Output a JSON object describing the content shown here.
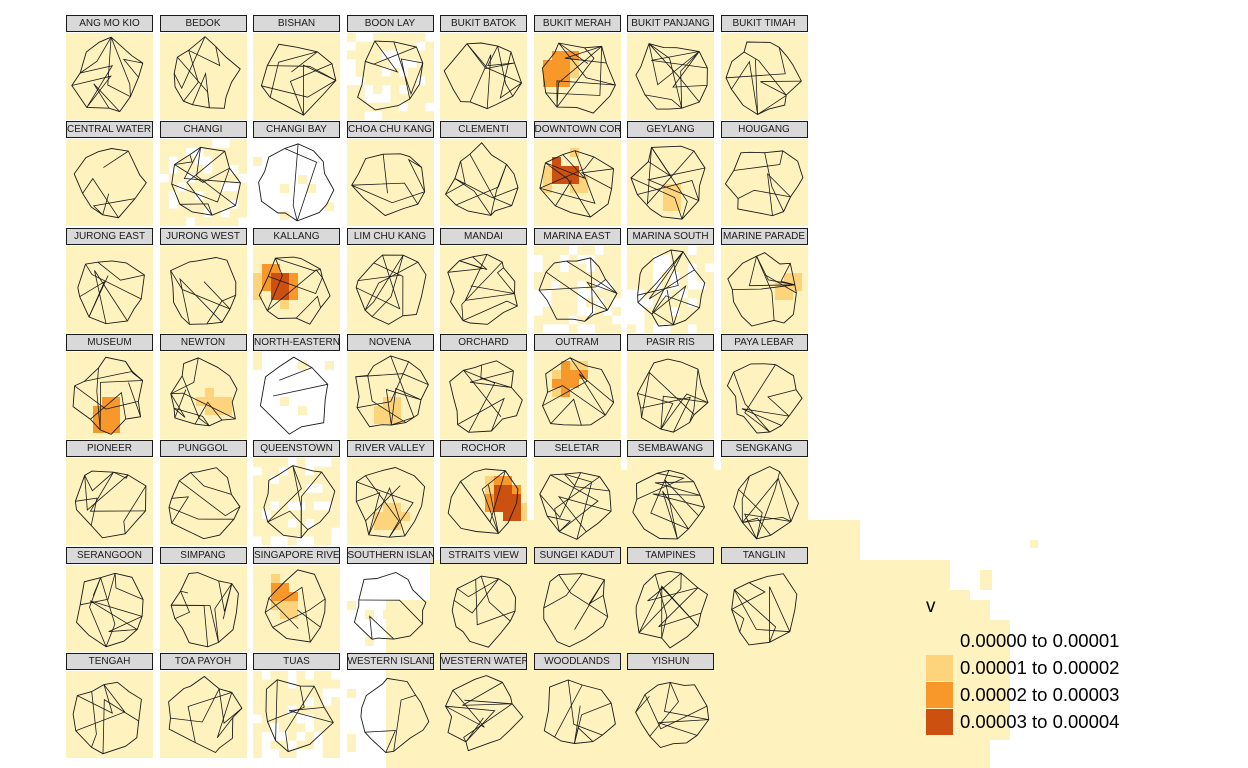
{
  "map": {
    "background_color": "#fef2bf",
    "panels": [
      {
        "label": "ANG MO KIO",
        "fill": "full",
        "hot": []
      },
      {
        "label": "BEDOK",
        "fill": "full",
        "hot": []
      },
      {
        "label": "BISHAN",
        "fill": "full",
        "hot": []
      },
      {
        "label": "BOON LAY",
        "fill": "partial",
        "hot": []
      },
      {
        "label": "BUKIT BATOK",
        "fill": "full",
        "hot": []
      },
      {
        "label": "BUKIT MERAH",
        "fill": "full",
        "hot": [
          1,
          2
        ]
      },
      {
        "label": "BUKIT PANJANG",
        "fill": "full",
        "hot": []
      },
      {
        "label": "BUKIT TIMAH",
        "fill": "full",
        "hot": []
      },
      {
        "label": "CENTRAL WATER CATCHMENT",
        "fill": "full",
        "hot": []
      },
      {
        "label": "CHANGI",
        "fill": "partial",
        "hot": []
      },
      {
        "label": "CHANGI BAY",
        "fill": "sparse",
        "hot": []
      },
      {
        "label": "CHOA CHU KANG",
        "fill": "full",
        "hot": []
      },
      {
        "label": "CLEMENTI",
        "fill": "full",
        "hot": []
      },
      {
        "label": "DOWNTOWN CORE",
        "fill": "full",
        "hot": [
          1,
          2,
          3
        ]
      },
      {
        "label": "GEYLANG",
        "fill": "full",
        "hot": [
          1
        ]
      },
      {
        "label": "HOUGANG",
        "fill": "full",
        "hot": []
      },
      {
        "label": "JURONG EAST",
        "fill": "full",
        "hot": []
      },
      {
        "label": "JURONG WEST",
        "fill": "full",
        "hot": []
      },
      {
        "label": "KALLANG",
        "fill": "full",
        "hot": [
          1,
          2,
          3
        ]
      },
      {
        "label": "LIM CHU KANG",
        "fill": "full",
        "hot": []
      },
      {
        "label": "MANDAI",
        "fill": "full",
        "hot": []
      },
      {
        "label": "MARINA EAST",
        "fill": "partial",
        "hot": []
      },
      {
        "label": "MARINA SOUTH",
        "fill": "partial",
        "hot": []
      },
      {
        "label": "MARINE PARADE",
        "fill": "full",
        "hot": [
          1
        ]
      },
      {
        "label": "MUSEUM",
        "fill": "full",
        "hot": [
          1,
          2
        ]
      },
      {
        "label": "NEWTON",
        "fill": "full",
        "hot": [
          1
        ]
      },
      {
        "label": "NORTH-EASTERN ISLANDS",
        "fill": "sparse",
        "hot": []
      },
      {
        "label": "NOVENA",
        "fill": "full",
        "hot": [
          1
        ]
      },
      {
        "label": "ORCHARD",
        "fill": "full",
        "hot": []
      },
      {
        "label": "OUTRAM",
        "fill": "full",
        "hot": [
          1,
          2
        ]
      },
      {
        "label": "PASIR RIS",
        "fill": "full",
        "hot": []
      },
      {
        "label": "PAYA LEBAR",
        "fill": "full",
        "hot": []
      },
      {
        "label": "PIONEER",
        "fill": "full",
        "hot": []
      },
      {
        "label": "PUNGGOL",
        "fill": "full",
        "hot": []
      },
      {
        "label": "QUEENSTOWN",
        "fill": "partial",
        "hot": []
      },
      {
        "label": "RIVER VALLEY",
        "fill": "full",
        "hot": [
          1
        ]
      },
      {
        "label": "ROCHOR",
        "fill": "full",
        "hot": [
          1,
          2,
          3
        ]
      },
      {
        "label": "SELETAR",
        "fill": "full",
        "hot": []
      },
      {
        "label": "SEMBAWANG",
        "fill": "full",
        "hot": []
      },
      {
        "label": "SENGKANG",
        "fill": "full",
        "hot": []
      },
      {
        "label": "SERANGOON",
        "fill": "full",
        "hot": []
      },
      {
        "label": "SIMPANG",
        "fill": "full",
        "hot": []
      },
      {
        "label": "SINGAPORE RIVER",
        "fill": "full",
        "hot": [
          1,
          2
        ]
      },
      {
        "label": "SOUTHERN ISLANDS",
        "fill": "sparse",
        "hot": []
      },
      {
        "label": "STRAITS VIEW",
        "fill": "full",
        "hot": []
      },
      {
        "label": "SUNGEI KADUT",
        "fill": "full",
        "hot": []
      },
      {
        "label": "TAMPINES",
        "fill": "full",
        "hot": []
      },
      {
        "label": "TANGLIN",
        "fill": "full",
        "hot": []
      },
      {
        "label": "TENGAH",
        "fill": "full",
        "hot": []
      },
      {
        "label": "TOA PAYOH",
        "fill": "full",
        "hot": []
      },
      {
        "label": "TUAS",
        "fill": "partial",
        "hot": []
      },
      {
        "label": "WESTERN ISLANDS",
        "fill": "sparse",
        "hot": []
      },
      {
        "label": "WESTERN WATER CATCHMENT",
        "fill": "full",
        "hot": []
      },
      {
        "label": "WOODLANDS",
        "fill": "full",
        "hot": []
      },
      {
        "label": "YISHUN",
        "fill": "full",
        "hot": []
      }
    ]
  },
  "legend": {
    "title": "v",
    "items": [
      {
        "label": "0.00000 to 0.00001",
        "color": "#fef2bf"
      },
      {
        "label": "0.00001 to 0.00002",
        "color": "#fdd37c"
      },
      {
        "label": "0.00002 to 0.00003",
        "color": "#f8972a"
      },
      {
        "label": "0.00003 to 0.00004",
        "color": "#cc5010"
      }
    ]
  }
}
